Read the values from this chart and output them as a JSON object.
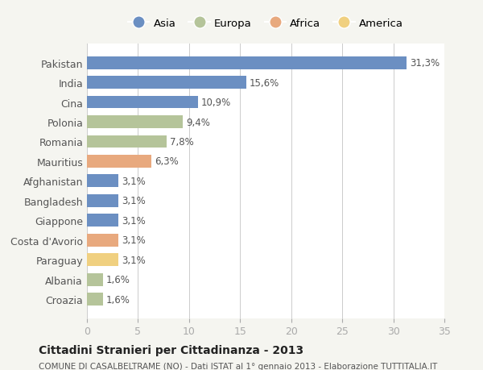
{
  "countries": [
    "Pakistan",
    "India",
    "Cina",
    "Polonia",
    "Romania",
    "Mauritius",
    "Afghanistan",
    "Bangladesh",
    "Giappone",
    "Costa d'Avorio",
    "Paraguay",
    "Albania",
    "Croazia"
  ],
  "values": [
    31.3,
    15.6,
    10.9,
    9.4,
    7.8,
    6.3,
    3.1,
    3.1,
    3.1,
    3.1,
    3.1,
    1.6,
    1.6
  ],
  "labels": [
    "31,3%",
    "15,6%",
    "10,9%",
    "9,4%",
    "7,8%",
    "6,3%",
    "3,1%",
    "3,1%",
    "3,1%",
    "3,1%",
    "3,1%",
    "1,6%",
    "1,6%"
  ],
  "colors": [
    "#6b8fc2",
    "#6b8fc2",
    "#6b8fc2",
    "#b5c49a",
    "#b5c49a",
    "#e8a97e",
    "#6b8fc2",
    "#6b8fc2",
    "#6b8fc2",
    "#e8a97e",
    "#f0d080",
    "#b5c49a",
    "#b5c49a"
  ],
  "continent_labels": [
    "Asia",
    "Europa",
    "Africa",
    "America"
  ],
  "continent_colors": [
    "#6b8fc2",
    "#b5c49a",
    "#e8a97e",
    "#f0d080"
  ],
  "title": "Cittadini Stranieri per Cittadinanza - 2013",
  "subtitle": "COMUNE DI CASALBELTRAME (NO) - Dati ISTAT al 1° gennaio 2013 - Elaborazione TUTTITALIA.IT",
  "xlim": [
    0,
    35
  ],
  "xticks": [
    0,
    5,
    10,
    15,
    20,
    25,
    30,
    35
  ],
  "background_color": "#f5f5f0",
  "plot_bg_color": "#ffffff"
}
